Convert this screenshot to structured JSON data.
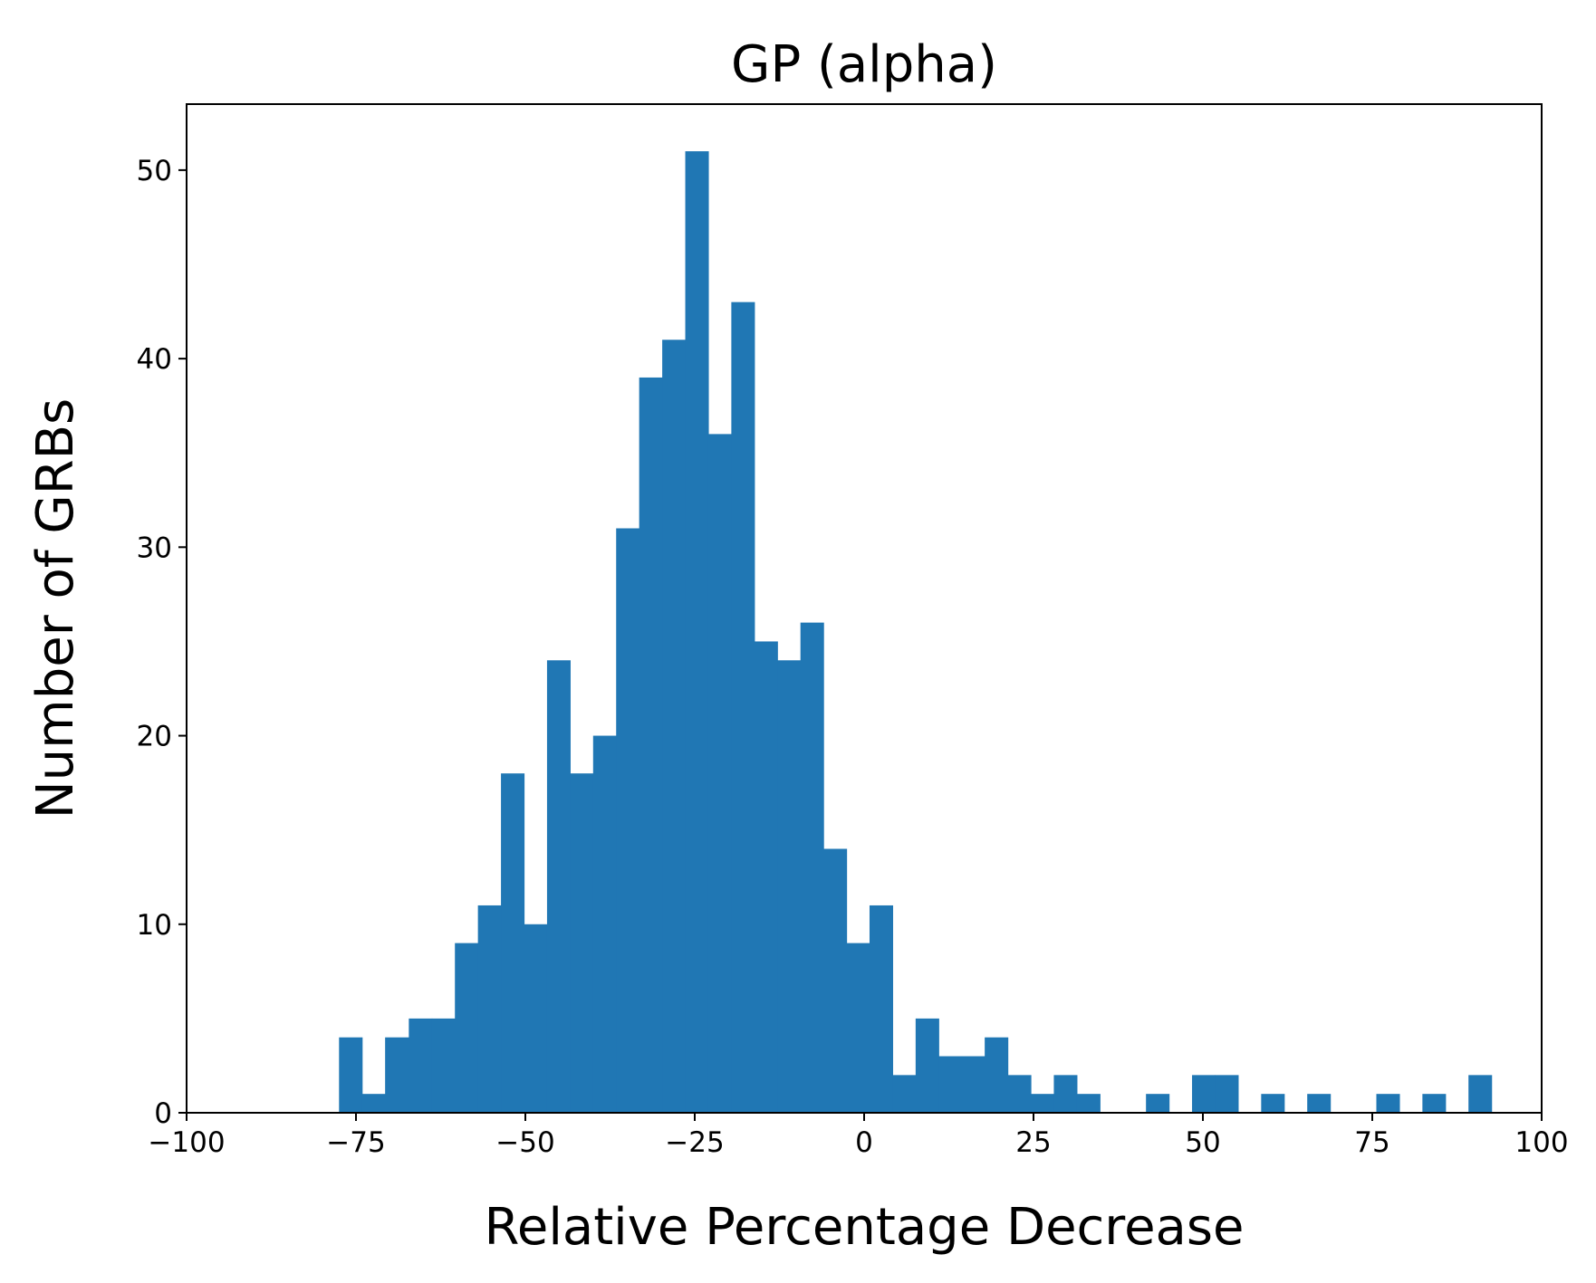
{
  "chart_data": {
    "type": "bar",
    "title": "GP (alpha)",
    "xlabel": "Relative Percentage Decrease",
    "ylabel": "Number of GRBs",
    "xlim": [
      -100,
      100
    ],
    "ylim": [
      0,
      53.5
    ],
    "xticks": [
      -100,
      -75,
      -50,
      -25,
      0,
      25,
      50,
      75,
      100
    ],
    "xtick_labels": [
      "−100",
      "−75",
      "−50",
      "−25",
      "0",
      "25",
      "50",
      "75",
      "100"
    ],
    "yticks": [
      0,
      10,
      20,
      30,
      40,
      50
    ],
    "ytick_labels": [
      "0",
      "10",
      "20",
      "30",
      "40",
      "50"
    ],
    "bin_edges": [
      -77.5,
      -74.1,
      -70.7,
      -67.2,
      -63.8,
      -60.4,
      -57.0,
      -53.6,
      -50.2,
      -46.8,
      -43.4,
      -40.0,
      -36.6,
      -33.2,
      -29.8,
      -26.4,
      -23.0,
      -19.6,
      -16.2,
      -12.8,
      -9.4,
      -6.0,
      -2.6,
      0.8,
      4.2,
      7.6,
      11.0,
      14.4,
      17.8,
      21.2,
      24.6,
      28.0,
      31.4,
      34.8,
      38.2,
      41.6,
      45.0,
      48.4,
      51.8,
      55.2,
      58.6,
      62.0,
      65.4,
      68.8,
      72.2,
      75.6,
      79.0,
      82.4,
      85.8,
      89.2,
      92.6
    ],
    "values": [
      4,
      1,
      4,
      5,
      5,
      9,
      11,
      18,
      10,
      24,
      18,
      20,
      31,
      39,
      41,
      51,
      36,
      43,
      25,
      24,
      26,
      14,
      9,
      11,
      2,
      5,
      3,
      3,
      4,
      2,
      1,
      2,
      1,
      0,
      0,
      1,
      0,
      2,
      2,
      0,
      1,
      0,
      1,
      0,
      0,
      1,
      0,
      1,
      0,
      2
    ],
    "bar_color": "#2077b4",
    "grid": false,
    "legend": "none"
  }
}
